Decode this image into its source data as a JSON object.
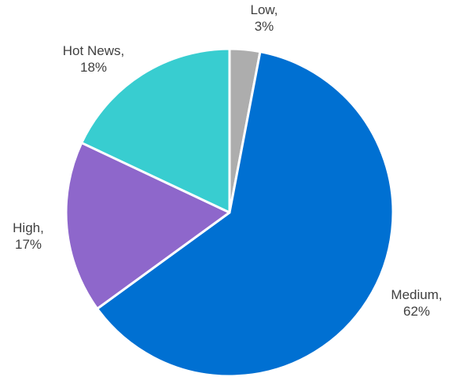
{
  "chart_data": {
    "type": "pie",
    "title": "",
    "start_angle_deg": 0,
    "direction": "clockwise",
    "slices": [
      {
        "label": "Low",
        "value": 3,
        "display": "3%",
        "color": "#ADADAD"
      },
      {
        "label": "Medium",
        "value": 62,
        "display": "62%",
        "color": "#0070D2"
      },
      {
        "label": "High",
        "value": 17,
        "display": "17%",
        "color": "#8E67CB"
      },
      {
        "label": "Hot News",
        "value": 18,
        "display": "18%",
        "color": "#38CDD0"
      }
    ],
    "legend": "none",
    "labels": "outside slices, category name and percent on two lines"
  }
}
